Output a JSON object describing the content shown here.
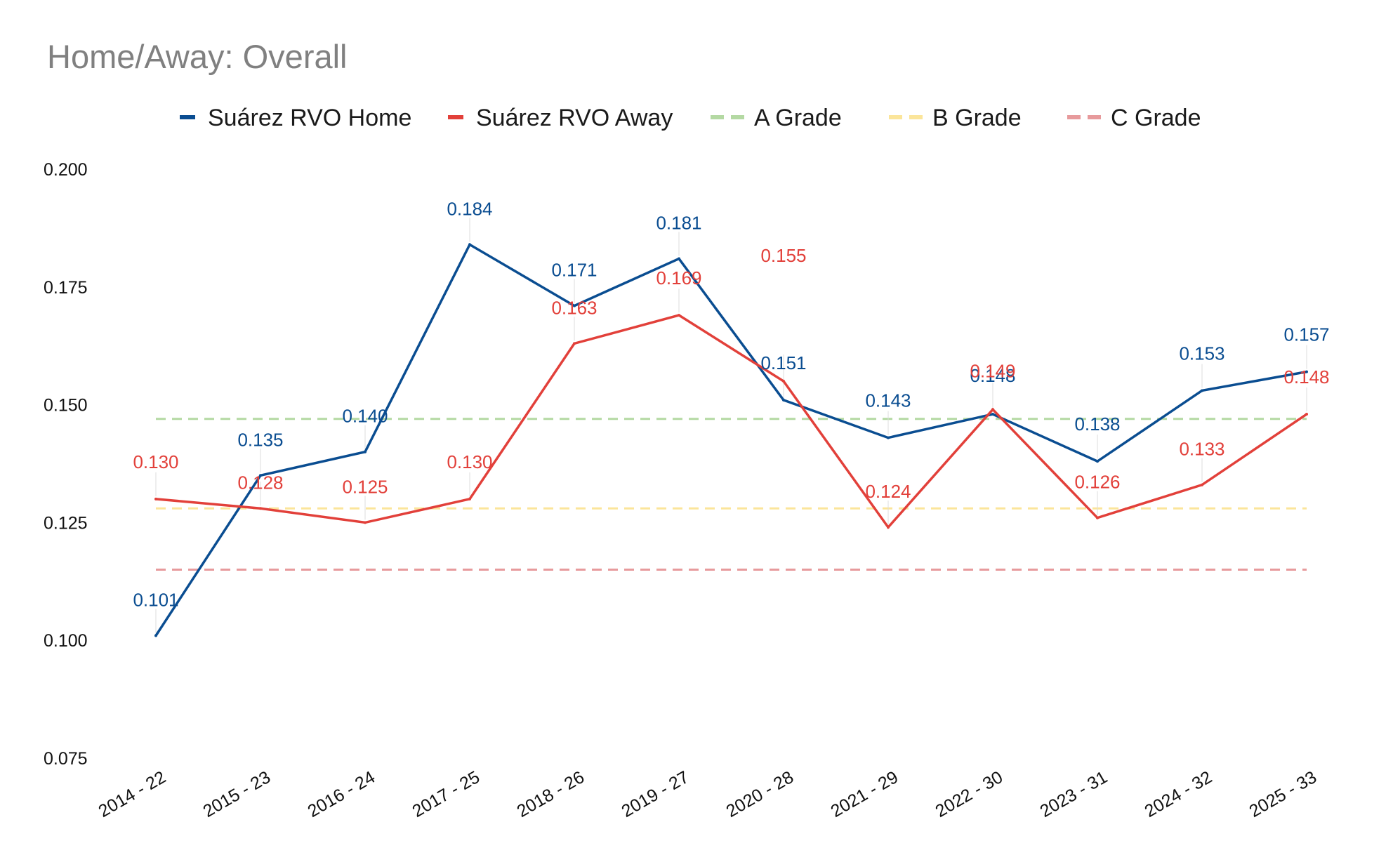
{
  "chart_data": {
    "type": "line",
    "title": "Home/Away: Overall",
    "categories": [
      "2014 - 22",
      "2015 - 23",
      "2016 - 24",
      "2017 - 25",
      "2018 - 26",
      "2019 - 27",
      "2020 - 28",
      "2021 - 29",
      "2022 - 30",
      "2023 - 31",
      "2024 - 32",
      "2025 - 33"
    ],
    "series": [
      {
        "name": "Suárez RVO Home",
        "color": "#0a4d91",
        "values": [
          0.101,
          0.135,
          0.14,
          0.184,
          0.171,
          0.181,
          0.151,
          0.143,
          0.148,
          0.138,
          0.153,
          0.157
        ],
        "labels": [
          "0.101",
          "0.135",
          "0.140",
          "0.184",
          "0.171",
          "0.181",
          "0.151",
          "0.143",
          "0.148",
          "0.138",
          "0.153",
          "0.157"
        ]
      },
      {
        "name": "Suárez RVO Away",
        "color": "#e2403a",
        "values": [
          0.13,
          0.128,
          0.125,
          0.13,
          0.163,
          0.169,
          0.155,
          0.124,
          0.149,
          0.126,
          0.133,
          0.148
        ],
        "labels": [
          "0.130",
          "0.128",
          "0.125",
          "0.130",
          "0.163",
          "0.169",
          "0.155",
          "0.124",
          "0.149",
          "0.126",
          "0.133",
          "0.148"
        ]
      }
    ],
    "reference_lines": [
      {
        "name": "A Grade",
        "value": 0.147,
        "color": "#b4d9a3"
      },
      {
        "name": "B Grade",
        "value": 0.128,
        "color": "#fbe59a"
      },
      {
        "name": "C Grade",
        "value": 0.115,
        "color": "#e79a9c"
      }
    ],
    "y_ticks": [
      "0.200",
      "0.175",
      "0.150",
      "0.125",
      "0.100",
      "0.075"
    ],
    "ylim": [
      0.075,
      0.2
    ],
    "legend_position": "top",
    "grid": false
  }
}
